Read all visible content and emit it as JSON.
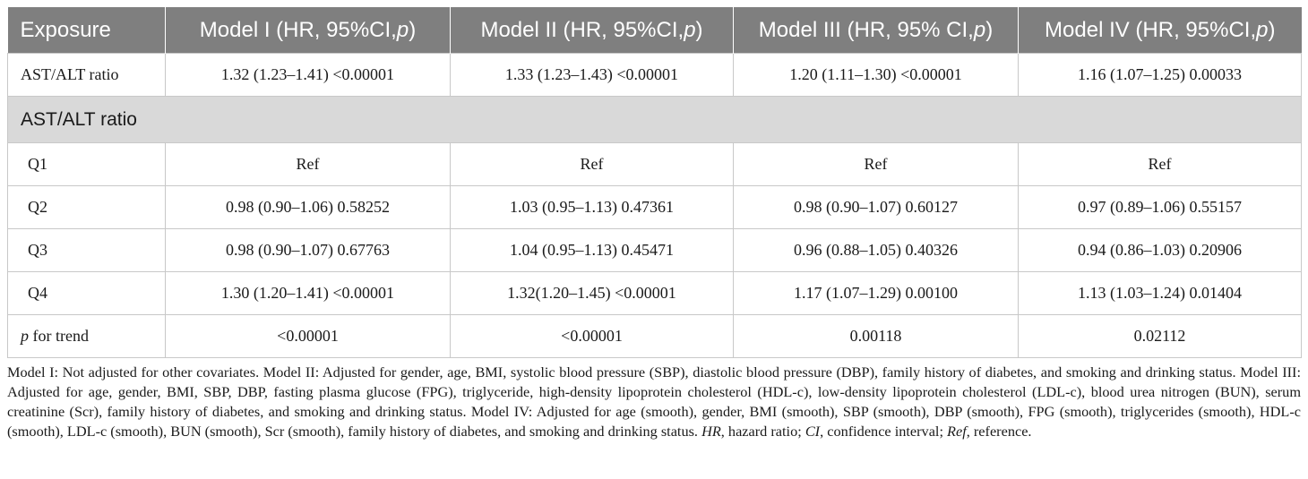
{
  "header": {
    "col0": "Exposure",
    "models": [
      {
        "pre": "Model I (HR, 95%CI,",
        "p": "p",
        "post": ")"
      },
      {
        "pre": "Model II (HR, 95%CI,",
        "p": "p",
        "post": ")"
      },
      {
        "pre": "Model III (HR, 95% CI,",
        "p": "p",
        "post": ")"
      },
      {
        "pre": "Model IV (HR, 95%CI,",
        "p": "p",
        "post": ")"
      }
    ]
  },
  "continuous_row": {
    "label": "AST/ALT ratio",
    "values": [
      "1.32 (1.23–1.41) <0.00001",
      "1.33 (1.23–1.43) <0.00001",
      "1.20 (1.11–1.30) <0.00001",
      "1.16 (1.07–1.25) 0.00033"
    ]
  },
  "section_label": "AST/ALT ratio",
  "quartile_rows": [
    {
      "label": "Q1",
      "values": [
        "Ref",
        "Ref",
        "Ref",
        "Ref"
      ]
    },
    {
      "label": "Q2",
      "values": [
        "0.98 (0.90–1.06) 0.58252",
        "1.03 (0.95–1.13) 0.47361",
        "0.98 (0.90–1.07) 0.60127",
        "0.97 (0.89–1.06) 0.55157"
      ]
    },
    {
      "label": "Q3",
      "values": [
        "0.98 (0.90–1.07) 0.67763",
        "1.04 (0.95–1.13) 0.45471",
        "0.96 (0.88–1.05) 0.40326",
        "0.94 (0.86–1.03) 0.20906"
      ]
    },
    {
      "label": "Q4",
      "values": [
        "1.30 (1.20–1.41) <0.00001",
        "1.32(1.20–1.45) <0.00001",
        "1.17 (1.07–1.29) 0.00100",
        "1.13 (1.03–1.24) 0.01404"
      ]
    }
  ],
  "trend_row": {
    "label_p": "p",
    "label_rest": " for trend",
    "values": [
      "<0.00001",
      "<0.00001",
      "0.00118",
      "0.02112"
    ]
  },
  "footnote": {
    "text": "Model I: Not adjusted for other covariates. Model II: Adjusted for gender, age, BMI, systolic blood pressure (SBP), diastolic blood pressure (DBP), family history of diabetes, and smoking and drinking status. Model III: Adjusted for age, gender, BMI, SBP, DBP, fasting plasma glucose (FPG), triglyceride, high-density lipoprotein cholesterol (HDL-c), low-density lipoprotein cholesterol (LDL-c), blood urea nitrogen (BUN), serum creatinine (Scr), family history of diabetes, and smoking and drinking status. Model IV: Adjusted for age (smooth), gender, BMI (smooth), SBP (smooth), DBP (smooth), FPG (smooth), triglycerides (smooth), HDL-c (smooth), LDL-c (smooth), BUN (smooth), Scr (smooth), family history of diabetes, and smoking and drinking status.",
    "abbr": [
      {
        "term": "HR",
        "def": ", hazard ratio; "
      },
      {
        "term": "CI",
        "def": ", confidence interval; "
      },
      {
        "term": "Ref",
        "def": ", reference."
      }
    ]
  }
}
